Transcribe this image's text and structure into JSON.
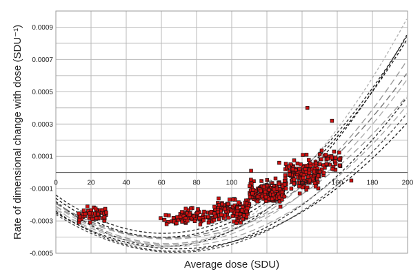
{
  "chart_data": {
    "type": "scatter",
    "title": "",
    "xlabel": "Average dose (SDU)",
    "ylabel": "Rate of dimensional change with dose (SDU⁻¹)",
    "xlim": [
      0,
      200
    ],
    "ylim": [
      -0.0005,
      0.001
    ],
    "x_ticks": [
      "0",
      "20",
      "40",
      "60",
      "80",
      "100",
      "120",
      "140",
      "160",
      "180",
      "200"
    ],
    "y_ticks": [
      "-0.0005",
      "-0.0003",
      "-0.0001",
      "0.0001",
      "0.0003",
      "0.0005",
      "0.0007",
      "0.0009"
    ],
    "grid": true,
    "marker_color": "#cc1111",
    "marker_edge_color": "#111111",
    "point_clusters": [
      {
        "x_range": [
          13,
          29
        ],
        "y_center": -0.00026,
        "y_spread": 5e-05,
        "count": 60
      },
      {
        "x_range": [
          58,
          75
        ],
        "y_center": -0.00029,
        "y_spread": 4e-05,
        "count": 25
      },
      {
        "x_range": [
          70,
          90
        ],
        "y_center": -0.00027,
        "y_spread": 5e-05,
        "count": 70
      },
      {
        "x_range": [
          90,
          110
        ],
        "y_center": -0.00023,
        "y_spread": 7e-05,
        "count": 120
      },
      {
        "x_range": [
          110,
          130
        ],
        "y_center": -0.00012,
        "y_spread": 8e-05,
        "count": 150
      },
      {
        "x_range": [
          130,
          150
        ],
        "y_center": -1e-05,
        "y_spread": 0.0001,
        "count": 150
      },
      {
        "x_range": [
          150,
          162
        ],
        "y_center": 8e-05,
        "y_spread": 0.0001,
        "count": 40
      }
    ],
    "extra_points": [
      {
        "x": 143,
        "y": 0.0004
      },
      {
        "x": 168,
        "y": -5e-05
      },
      {
        "x": 157,
        "y": 0.00032
      },
      {
        "x": 127,
        "y": 6e-05
      },
      {
        "x": 111,
        "y": 1e-05
      }
    ],
    "curves": [
      {
        "a": 6.35e-08,
        "b": -7.75e-06,
        "c": -0.00014,
        "style": "short-dash",
        "color": "#333333"
      },
      {
        "a": 6.4e-08,
        "b": -7.85e-06,
        "c": -0.00016,
        "style": "short-dash",
        "color": "#222222"
      },
      {
        "a": 6.15e-08,
        "b": -7.85e-06,
        "c": -0.00019,
        "style": "long-dash",
        "color": "#9a9a9a"
      },
      {
        "a": 7e-08,
        "b": -8.8e-06,
        "c": -0.00018,
        "style": "short-dash",
        "color": "#222222"
      },
      {
        "a": 5.45e-08,
        "b": -6.85e-06,
        "c": -0.00019,
        "style": "long-dash",
        "color": "#777777"
      },
      {
        "a": 5.65e-08,
        "b": -7.35e-06,
        "c": -0.00021,
        "style": "long-dash",
        "color": "#b0b0b0"
      },
      {
        "a": 4.85e-08,
        "b": -6.25e-06,
        "c": -0.00021,
        "style": "long-dash",
        "color": "#999999"
      },
      {
        "a": 5.45e-08,
        "b": -7.35e-06,
        "c": -0.00024,
        "style": "short-dash",
        "color": "#333333"
      },
      {
        "a": 5e-08,
        "b": -6.75e-06,
        "c": -0.00023,
        "style": "long-dash",
        "color": "#aaaaaa"
      },
      {
        "a": 4.6e-08,
        "b": -6.4e-06,
        "c": -0.00025,
        "style": "short-dash",
        "color": "#222222"
      },
      {
        "a": 5e-08,
        "b": -6.85e-06,
        "c": -0.00026,
        "style": "short-dash",
        "color": "#555555"
      },
      {
        "a": 7.1e-08,
        "b": -8.3e-06,
        "c": -0.00022,
        "style": "short-dash",
        "color": "#b5b5b5"
      }
    ]
  }
}
